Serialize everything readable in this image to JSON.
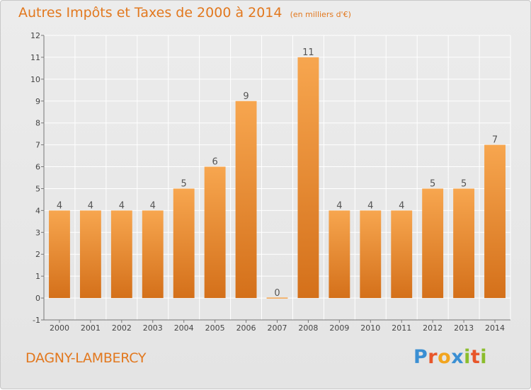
{
  "header": {
    "title": "Autres Impôts et Taxes de 2000 à 2014",
    "subtitle": "(en milliers d'€)"
  },
  "footer": {
    "commune": "DAGNY-LAMBERCY",
    "logo_text": "Proxiti"
  },
  "colors": {
    "bar_top": "#f7a64f",
    "bar_bottom": "#d4701a",
    "title": "#e2781e",
    "grid": "#ffffff",
    "axis_text": "#444444"
  },
  "chart_data": {
    "type": "bar",
    "categories": [
      "2000",
      "2001",
      "2002",
      "2003",
      "2004",
      "2005",
      "2006",
      "2007",
      "2008",
      "2009",
      "2010",
      "2011",
      "2012",
      "2013",
      "2014"
    ],
    "values": [
      4,
      4,
      4,
      4,
      5,
      6,
      9,
      0,
      11,
      4,
      4,
      4,
      5,
      5,
      7
    ],
    "data_labels": [
      "4",
      "4",
      "4",
      "4",
      "5",
      "6",
      "9",
      "0",
      "11",
      "4",
      "4",
      "4",
      "5",
      "5",
      "7"
    ],
    "title": "Autres Impôts et Taxes de 2000 à 2014",
    "xlabel": "",
    "ylabel": "",
    "ylim": [
      -1,
      12
    ],
    "yticks": [
      "-1",
      "0",
      "1",
      "2",
      "3",
      "4",
      "5",
      "6",
      "7",
      "8",
      "9",
      "10",
      "11",
      "12"
    ],
    "grid": true
  }
}
